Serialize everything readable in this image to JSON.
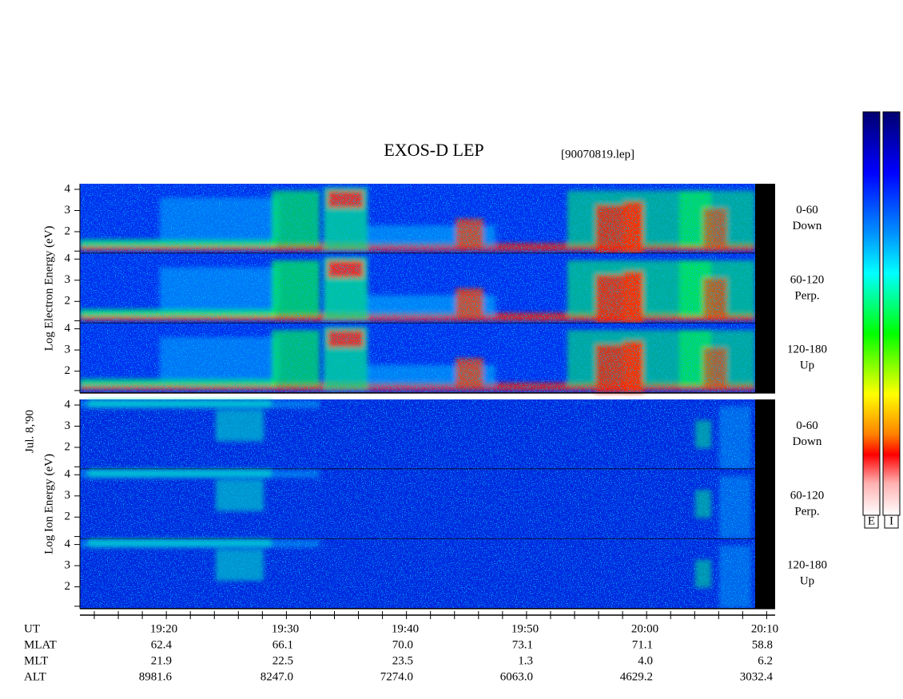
{
  "header": {
    "title": "EXOS-D LEP",
    "file": "[90070819.lep]",
    "date": "Jul. 8,'90"
  },
  "groups": [
    {
      "axis_label": "Log Electron Energy (eV)",
      "energy_ticks": [
        "4",
        "3",
        "2"
      ],
      "panels": [
        {
          "angle": "0-60",
          "direction": "Down"
        },
        {
          "angle": "60-120",
          "direction": "Perp."
        },
        {
          "angle": "120-180",
          "direction": "Up"
        }
      ]
    },
    {
      "axis_label": "Log Ion Energy (eV)",
      "energy_ticks": [
        "4",
        "3",
        "2"
      ],
      "panels": [
        {
          "angle": "0-60",
          "direction": "Down"
        },
        {
          "angle": "60-120",
          "direction": "Perp."
        },
        {
          "angle": "120-180",
          "direction": "Up"
        }
      ]
    }
  ],
  "table": {
    "rows": [
      [
        "UT",
        "19:20",
        "19:30",
        "19:40",
        "19:50",
        "20:00",
        "20:10"
      ],
      [
        "MLAT",
        "62.4",
        "66.1",
        "70.0",
        "73.1",
        "71.1",
        "58.8"
      ],
      [
        "MLT",
        "21.9",
        "22.5",
        "23.5",
        "1.3",
        "4.0",
        "6.2"
      ],
      [
        "ALT",
        "8981.6",
        "8247.0",
        "7274.0",
        "6063.0",
        "4629.2",
        "3032.4"
      ]
    ]
  },
  "colorbars": [
    "E",
    "I"
  ]
}
